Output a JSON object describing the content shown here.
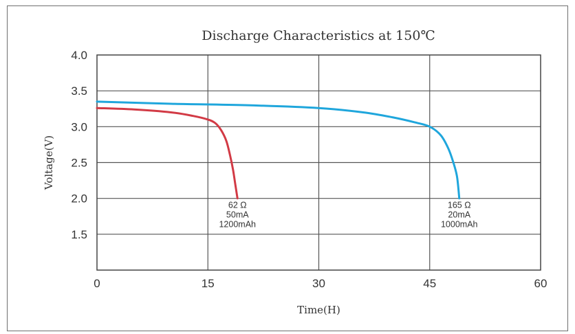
{
  "chart_data": {
    "type": "line",
    "title": "Discharge Characteristics at 150℃",
    "xlabel": "Time(H)",
    "ylabel": "Voltage(V)",
    "xlim": [
      0,
      60
    ],
    "ylim": [
      1.0,
      4.0
    ],
    "x_ticks": [
      0,
      15,
      30,
      45,
      60
    ],
    "y_ticks": [
      1.5,
      2.0,
      2.5,
      3.0,
      3.5,
      4.0
    ],
    "grid": true,
    "series": [
      {
        "color": "#d23a45",
        "points": [
          [
            0,
            3.26
          ],
          [
            5,
            3.24
          ],
          [
            10,
            3.2
          ],
          [
            13,
            3.15
          ],
          [
            15,
            3.1
          ],
          [
            16,
            3.05
          ],
          [
            16.8,
            2.95
          ],
          [
            17.5,
            2.8
          ],
          [
            18,
            2.6
          ],
          [
            18.4,
            2.4
          ],
          [
            18.7,
            2.2
          ],
          [
            19,
            2.0
          ]
        ],
        "annotation": [
          "62 Ω",
          "50mA",
          "1200mAh"
        ]
      },
      {
        "color": "#1fa6dc",
        "points": [
          [
            0,
            3.35
          ],
          [
            10,
            3.32
          ],
          [
            20,
            3.3
          ],
          [
            30,
            3.26
          ],
          [
            36,
            3.2
          ],
          [
            40,
            3.13
          ],
          [
            43,
            3.06
          ],
          [
            45,
            3.0
          ],
          [
            46.5,
            2.88
          ],
          [
            47.5,
            2.7
          ],
          [
            48.2,
            2.5
          ],
          [
            48.7,
            2.3
          ],
          [
            49,
            2.0
          ]
        ],
        "annotation": [
          "165 Ω",
          "20mA",
          "1000mAh"
        ]
      }
    ]
  }
}
